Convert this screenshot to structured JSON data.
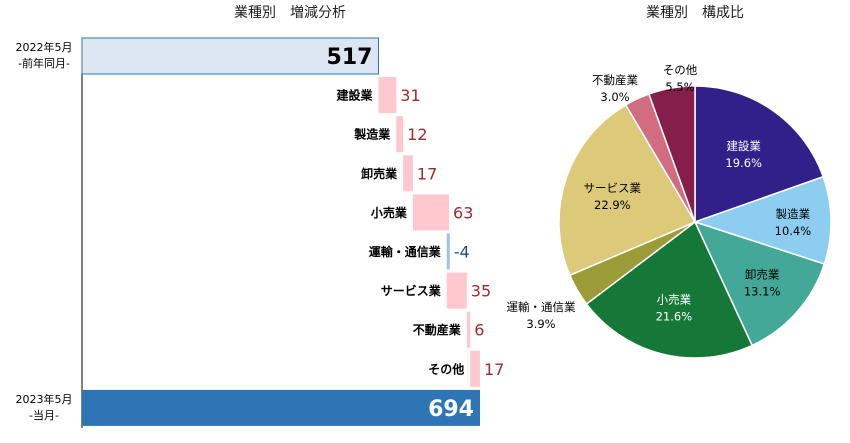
{
  "chart_data": [
    {
      "type": "bar",
      "title": "業種別　増減分析",
      "start": {
        "label_line1": "2022年5月",
        "label_line2": "-前年同月-",
        "value": 517
      },
      "end": {
        "label_line1": "2023年5月",
        "label_line2": "-当月-",
        "value": 694
      },
      "categories": [
        "建設業",
        "製造業",
        "卸売業",
        "小売業",
        "運輸・通信業",
        "サービス業",
        "不動産業",
        "その他"
      ],
      "values": [
        31,
        12,
        17,
        63,
        -4,
        35,
        6,
        17
      ],
      "value_labels": [
        "31",
        "12",
        "17",
        "63",
        "-4",
        "35",
        "6",
        "17"
      ],
      "xlim": [
        0,
        694
      ],
      "colors": {
        "start": "#dce6f2",
        "start_border": "#2e75b6",
        "end": "#2e75b6",
        "increase": "#ffc7ce",
        "decrease": "#9dc3e6",
        "increase_text": "#9c2b2b",
        "decrease_text": "#1f4e79",
        "axis": "#000000"
      }
    },
    {
      "type": "pie",
      "title": "業種別　構成比",
      "categories": [
        "建設業",
        "製造業",
        "卸売業",
        "小売業",
        "運輸・通信業",
        "サービス業",
        "不動産業",
        "その他"
      ],
      "values": [
        19.6,
        10.4,
        13.1,
        21.6,
        3.9,
        22.9,
        3.0,
        5.5
      ],
      "percent_labels": [
        "19.6%",
        "10.4%",
        "13.1%",
        "21.6%",
        "3.9%",
        "22.9%",
        "3.0%",
        "5.5%"
      ],
      "colors": [
        "#32208a",
        "#8ccdf0",
        "#44a898",
        "#167838",
        "#9b9b38",
        "#ddc97a",
        "#d26c80",
        "#861e4c"
      ],
      "label_colors": [
        "#ffffff",
        "#000000",
        "#000000",
        "#ffffff",
        "#000000",
        "#000000",
        "#000000",
        "#000000"
      ]
    }
  ]
}
